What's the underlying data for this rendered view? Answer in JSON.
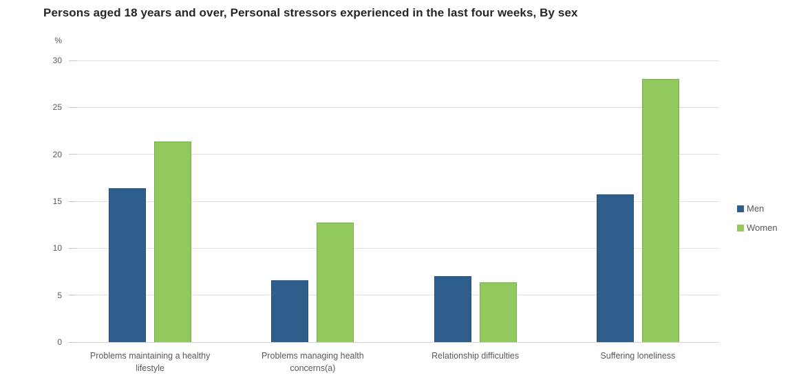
{
  "chart_data": {
    "type": "bar",
    "title": "Persons aged 18 years and over, Personal stressors experienced in the last four weeks, By sex",
    "xlabel": "",
    "ylabel": "%",
    "ylim": [
      0,
      30
    ],
    "yticks": [
      0,
      5,
      10,
      15,
      20,
      25,
      30
    ],
    "grid": true,
    "legend_position": "right",
    "categories": [
      "Problems maintaining a healthy\nlifestyle",
      "Problems managing health\nconcerns(a)",
      "Relationship difficulties",
      "Suffering loneliness"
    ],
    "series": [
      {
        "name": "Men",
        "color": "#2e5f8c",
        "values": [
          16.4,
          6.6,
          7.0,
          15.7
        ]
      },
      {
        "name": "Women",
        "color": "#92c95e",
        "values": [
          21.4,
          12.7,
          6.4,
          28.0
        ]
      }
    ]
  },
  "colors": {
    "title_text": "#262626",
    "axis_text": "#595959",
    "gridline": "#e0e0e0",
    "axis_line": "#d4d4d4",
    "tick": "#c6c6c6",
    "background": "#ffffff"
  }
}
